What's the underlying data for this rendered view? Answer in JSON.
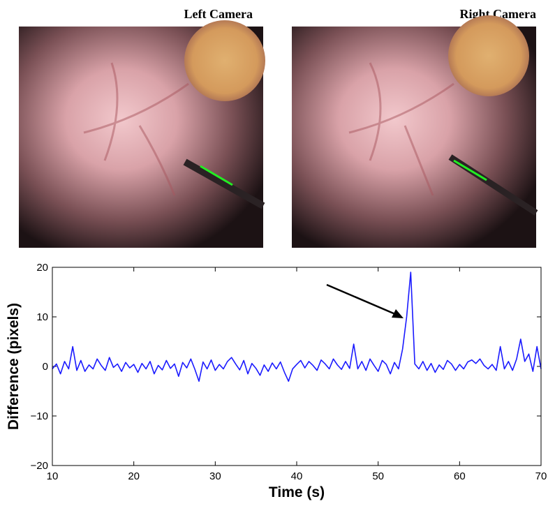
{
  "panels": [
    {
      "title": "Left Camera"
    },
    {
      "title": "Right Camera"
    }
  ],
  "chart_data": {
    "type": "line",
    "xlabel": "Time (s)",
    "ylabel": "Difference (pixels)",
    "xlim": [
      10,
      70
    ],
    "ylim": [
      -20,
      20
    ],
    "xticks": [
      10,
      20,
      30,
      40,
      50,
      60,
      70
    ],
    "yticks": [
      {
        "value": -20,
        "label": "−20"
      },
      {
        "value": -10,
        "label": "−10"
      },
      0,
      10,
      20
    ],
    "x": [
      10,
      10.5,
      11,
      11.5,
      12,
      12.5,
      13,
      13.5,
      14,
      14.5,
      15,
      15.5,
      16,
      16.5,
      17,
      17.5,
      18,
      18.5,
      19,
      19.5,
      20,
      20.5,
      21,
      21.5,
      22,
      22.5,
      23,
      23.5,
      24,
      24.5,
      25,
      25.5,
      26,
      26.5,
      27,
      27.5,
      28,
      28.5,
      29,
      29.5,
      30,
      30.5,
      31,
      31.5,
      32,
      32.5,
      33,
      33.5,
      34,
      34.5,
      35,
      35.5,
      36,
      36.5,
      37,
      37.5,
      38,
      38.5,
      39,
      39.5,
      40,
      40.5,
      41,
      41.5,
      42,
      42.5,
      43,
      43.5,
      44,
      44.5,
      45,
      45.5,
      46,
      46.5,
      47,
      47.5,
      48,
      48.5,
      49,
      49.5,
      50,
      50.5,
      51,
      51.5,
      52,
      52.5,
      53,
      53.5,
      54,
      54.5,
      55,
      55.5,
      56,
      56.5,
      57,
      57.5,
      58,
      58.5,
      59,
      59.5,
      60,
      60.5,
      61,
      61.5,
      62,
      62.5,
      63,
      63.5,
      64,
      64.5,
      65,
      65.5,
      66,
      66.5,
      67,
      67.5,
      68,
      68.5,
      69,
      69.5,
      70
    ],
    "series": [
      {
        "color": "#1a1aff",
        "values": [
          -0.5,
          0.5,
          -1.5,
          1,
          -0.5,
          4,
          -0.8,
          1.2,
          -1,
          0.3,
          -0.5,
          1.5,
          0.2,
          -0.8,
          1.8,
          -0.2,
          0.5,
          -1,
          0.8,
          -0.3,
          0.4,
          -1.2,
          0.6,
          -0.5,
          1,
          -1.5,
          0.2,
          -0.7,
          1.2,
          -0.4,
          0.5,
          -2,
          0.8,
          -0.3,
          1.5,
          -0.6,
          -3,
          0.9,
          -0.5,
          1.3,
          -0.8,
          0.4,
          -0.5,
          1,
          1.8,
          0.5,
          -0.7,
          1.2,
          -1.5,
          0.6,
          -0.4,
          -1.8,
          0.3,
          -1,
          0.7,
          -0.5,
          0.9,
          -1.2,
          -3,
          -0.5,
          0.4,
          1.2,
          -0.3,
          1,
          0.2,
          -0.8,
          1.3,
          0.5,
          -0.5,
          1.5,
          0.3,
          -0.6,
          1,
          -0.4,
          4.5,
          -0.5,
          1,
          -0.8,
          1.5,
          0.2,
          -1,
          1.2,
          0.4,
          -1.5,
          0.8,
          -0.5,
          3.5,
          10,
          19,
          0.5,
          -0.5,
          1,
          -0.8,
          0.6,
          -1.2,
          0.3,
          -0.6,
          1.2,
          0.5,
          -0.8,
          0.4,
          -0.5,
          0.9,
          1.3,
          0.6,
          1.5,
          0.2,
          -0.5,
          0.4,
          -0.8,
          4,
          -0.5,
          1,
          -0.8,
          1.5,
          5.5,
          1,
          2.5,
          -1,
          4,
          -0.5
        ]
      }
    ]
  }
}
